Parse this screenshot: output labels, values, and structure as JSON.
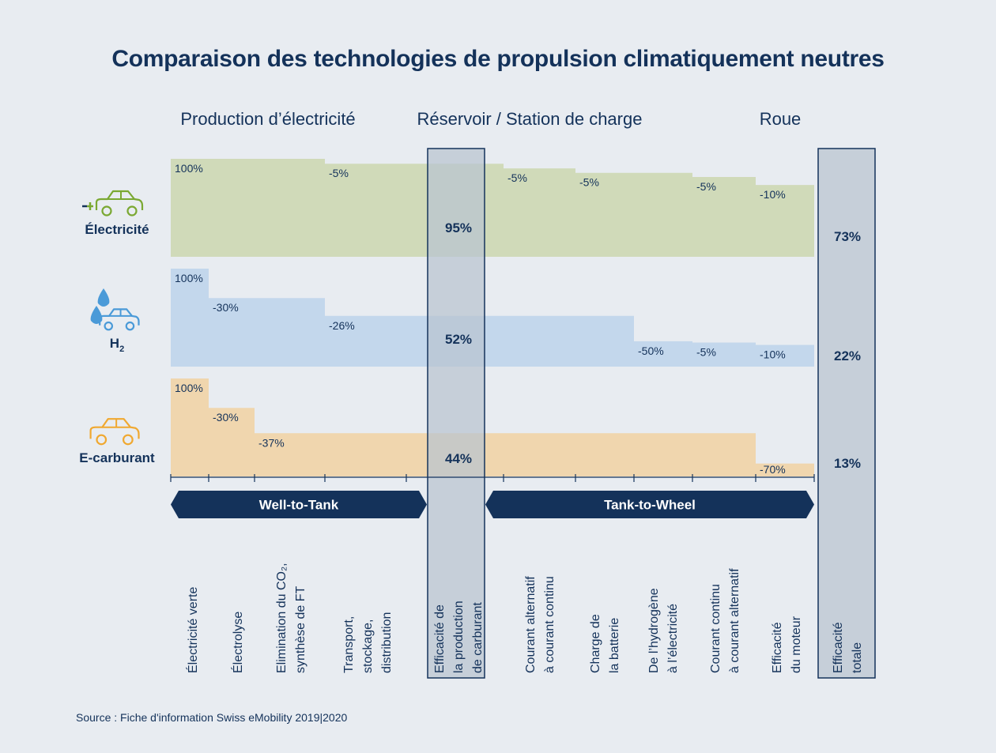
{
  "title": "Comparaison des technologies de propulsion climatiquement neutres",
  "source": "Source : Fiche d'information Swiss eMobility 2019|2020",
  "colors": {
    "navy": "#14325a",
    "electricite": "#d0dab9",
    "h2": "#c3d7ec",
    "ecarburant": "#f0d6ae",
    "column": "#b9c3d0",
    "icon_green": "#7aa832",
    "icon_blue": "#4a9ad8",
    "icon_orange": "#f0a830"
  },
  "chart_data": {
    "type": "waterfall",
    "title": "Comparaison des technologies de propulsion climatiquement neutres",
    "section_headers": [
      "Production d’électricité",
      "Réservoir / Station de charge",
      "Roue"
    ],
    "phases": [
      "Well-to-Tank",
      "Tank-to-Wheel"
    ],
    "steps": [
      "Électricité verte",
      "Électrolyse",
      "Elimination du CO₂, synthèse de FT",
      "Transport, stockage, distribution",
      "Efficacité de la production de carburant",
      "Courant alternatif à courant continu",
      "Charge de la batterie",
      "De l’hydrogène à l’électricité",
      "Courant continu à courant alternatif",
      "Efficacité du moteur",
      "Efficacité totale"
    ],
    "series": [
      {
        "name": "Électricité",
        "icon": "electric-car-plug-icon",
        "changes": [
          {
            "step": "Électricité verte",
            "value": 100,
            "label": "100%"
          },
          {
            "step": "Transport, stockage, distribution",
            "value": -5,
            "label": "-5%"
          },
          {
            "step": "Courant alternatif à courant continu",
            "value": -5,
            "label": "-5%"
          },
          {
            "step": "Charge de la batterie",
            "value": -5,
            "label": "-5%"
          },
          {
            "step": "Courant continu à courant alternatif",
            "value": -5,
            "label": "-5%"
          },
          {
            "step": "Efficacité du moteur",
            "value": -10,
            "label": "-10%"
          }
        ],
        "fuel_production_efficiency": "95%",
        "total_efficiency": "73%"
      },
      {
        "name": "H",
        "name_subscript": "2",
        "icon": "hydrogen-car-drops-icon",
        "changes": [
          {
            "step": "Électricité verte",
            "value": 100,
            "label": "100%"
          },
          {
            "step": "Électrolyse",
            "value": -30,
            "label": "-30%"
          },
          {
            "step": "Transport, stockage, distribution",
            "value": -26,
            "label": "-26%"
          },
          {
            "step": "De l’hydrogène à l’électricité",
            "value": -50,
            "label": "-50%"
          },
          {
            "step": "Courant continu à courant alternatif",
            "value": -5,
            "label": "-5%"
          },
          {
            "step": "Efficacité du moteur",
            "value": -10,
            "label": "-10%"
          }
        ],
        "fuel_production_efficiency": "52%",
        "total_efficiency": "22%"
      },
      {
        "name": "E-carburant",
        "icon": "combustion-car-icon",
        "changes": [
          {
            "step": "Électricité verte",
            "value": 100,
            "label": "100%"
          },
          {
            "step": "Électrolyse",
            "value": -30,
            "label": "-30%"
          },
          {
            "step": "Elimination du CO₂, synthèse de FT",
            "value": -37,
            "label": "-37%"
          },
          {
            "step": "Efficacité du moteur",
            "value": -70,
            "label": "-70%"
          }
        ],
        "fuel_production_efficiency": "44%",
        "total_efficiency": "13%"
      }
    ]
  }
}
